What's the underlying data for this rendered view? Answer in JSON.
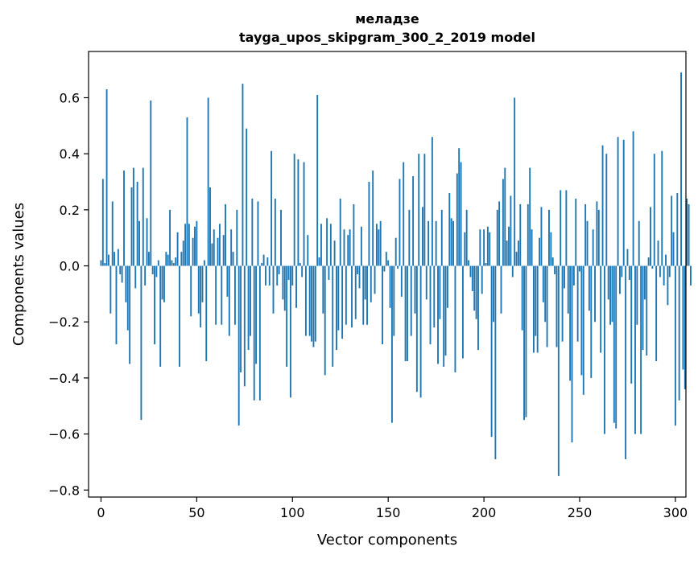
{
  "chart_data": {
    "type": "bar",
    "title": "меладзе",
    "subtitle": "tayga_upos_skipgram_300_2_2019 model",
    "xlabel": "Vector components",
    "ylabel": "Components values",
    "xlim": [
      -6.5,
      305.5
    ],
    "ylim": [
      -0.825,
      0.765
    ],
    "xticks": [
      0,
      50,
      100,
      150,
      200,
      250,
      300
    ],
    "xtick_labels": [
      "0",
      "50",
      "100",
      "150",
      "200",
      "250",
      "300"
    ],
    "yticks": [
      -0.8,
      -0.6,
      -0.4,
      -0.2,
      0.0,
      0.2,
      0.4,
      0.6
    ],
    "ytick_labels": [
      "−0.8",
      "−0.6",
      "−0.4",
      "−0.2",
      "0.0",
      "0.2",
      "0.4",
      "0.6"
    ],
    "grid": false,
    "bar_color": "#1f77b4",
    "series": [
      {
        "name": "меладзе",
        "values": [
          0.02,
          0.31,
          0.01,
          0.63,
          0.04,
          -0.17,
          0.23,
          0.05,
          -0.28,
          0.06,
          -0.03,
          -0.06,
          0.34,
          -0.13,
          -0.23,
          -0.35,
          0.28,
          0.35,
          -0.08,
          0.3,
          0.16,
          -0.55,
          0.35,
          -0.07,
          0.17,
          0.05,
          0.59,
          -0.03,
          -0.28,
          -0.04,
          0.02,
          -0.36,
          -0.12,
          -0.13,
          0.05,
          0.04,
          0.2,
          0.02,
          0.01,
          0.03,
          0.12,
          -0.36,
          0.05,
          0.09,
          0.15,
          0.53,
          0.15,
          -0.18,
          0.1,
          0.14,
          0.16,
          -0.17,
          -0.22,
          -0.13,
          0.02,
          -0.34,
          0.6,
          0.28,
          0.08,
          0.13,
          -0.21,
          0.1,
          0.15,
          -0.21,
          0.11,
          0.22,
          -0.11,
          -0.25,
          0.13,
          0.05,
          -0.21,
          0.2,
          -0.57,
          -0.38,
          0.65,
          -0.43,
          0.49,
          -0.3,
          -0.25,
          0.24,
          -0.48,
          -0.35,
          0.23,
          -0.48,
          0.01,
          0.04,
          -0.07,
          0.03,
          -0.07,
          0.41,
          -0.17,
          0.24,
          -0.07,
          -0.03,
          0.2,
          -0.12,
          -0.16,
          -0.36,
          -0.05,
          -0.47,
          -0.07,
          0.4,
          -0.15,
          0.38,
          0.01,
          -0.04,
          0.37,
          -0.25,
          0.11,
          -0.25,
          -0.27,
          -0.29,
          -0.27,
          0.61,
          0.03,
          0.15,
          -0.17,
          -0.39,
          0.17,
          -0.05,
          0.15,
          -0.36,
          0.09,
          -0.3,
          -0.23,
          0.24,
          -0.26,
          0.13,
          -0.21,
          0.11,
          0.13,
          -0.22,
          0.22,
          -0.19,
          -0.03,
          -0.08,
          0.14,
          -0.21,
          -0.12,
          -0.21,
          0.3,
          -0.13,
          0.34,
          -0.1,
          0.15,
          0.13,
          0.16,
          -0.28,
          -0.02,
          0.05,
          0.02,
          -0.15,
          -0.56,
          -0.25,
          0.1,
          -0.01,
          0.31,
          -0.11,
          0.37,
          -0.34,
          -0.34,
          0.2,
          -0.25,
          0.32,
          -0.17,
          -0.45,
          0.4,
          -0.47,
          0.21,
          0.4,
          -0.12,
          0.16,
          -0.28,
          0.46,
          -0.22,
          0.16,
          -0.35,
          -0.19,
          0.2,
          -0.36,
          -0.32,
          -0.15,
          0.26,
          0.17,
          0.16,
          -0.38,
          0.33,
          0.42,
          0.37,
          -0.33,
          0.12,
          0.2,
          0.02,
          -0.04,
          -0.09,
          -0.16,
          -0.19,
          -0.3,
          0.13,
          -0.1,
          0.13,
          0.01,
          0.14,
          0.12,
          -0.61,
          -0.2,
          -0.69,
          0.2,
          0.23,
          -0.17,
          0.31,
          0.35,
          0.09,
          0.14,
          0.25,
          -0.04,
          0.6,
          0.05,
          0.09,
          0.22,
          -0.23,
          -0.55,
          -0.54,
          0.22,
          0.35,
          0.13,
          -0.31,
          -0.25,
          -0.31,
          0.1,
          0.21,
          -0.13,
          -0.2,
          -0.29,
          0.2,
          0.12,
          0.03,
          -0.03,
          -0.29,
          -0.75,
          0.27,
          -0.27,
          -0.08,
          0.27,
          -0.17,
          -0.41,
          -0.63,
          -0.07,
          0.24,
          -0.27,
          -0.02,
          -0.39,
          -0.46,
          0.22,
          0.16,
          -0.16,
          -0.4,
          0.13,
          -0.2,
          0.23,
          0.2,
          -0.31,
          0.43,
          -0.6,
          0.4,
          -0.12,
          -0.21,
          -0.2,
          -0.56,
          -0.58,
          0.46,
          -0.1,
          -0.04,
          0.45,
          -0.69,
          0.06,
          -0.05,
          -0.42,
          0.48,
          -0.6,
          -0.21,
          0.16,
          -0.6,
          -0.3,
          -0.12,
          -0.32,
          0.03,
          0.21,
          -0.01,
          0.4,
          -0.34,
          0.09,
          -0.04,
          0.41,
          -0.07,
          0.04,
          -0.14,
          -0.04,
          0.25,
          0.12,
          -0.57,
          0.26,
          -0.48,
          0.69,
          -0.37,
          -0.44,
          0.24,
          0.22,
          -0.07
        ]
      }
    ]
  }
}
